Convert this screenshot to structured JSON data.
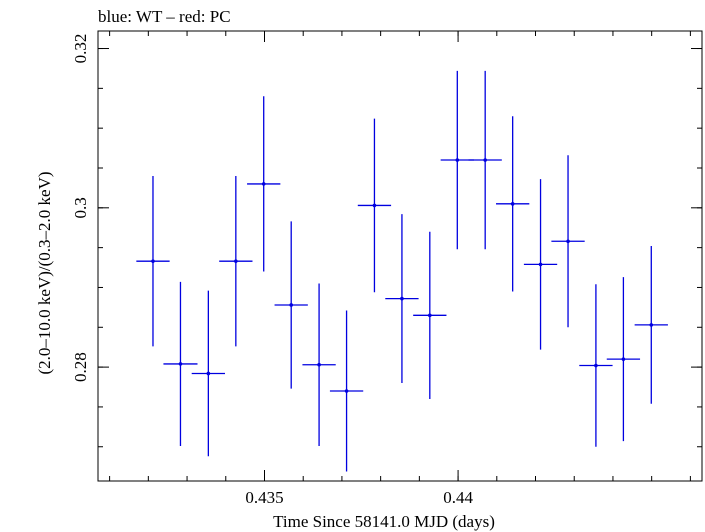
{
  "header": {
    "title": "blue: WT – red: PC"
  },
  "chart_data": {
    "type": "scatter",
    "title": "blue: WT – red: PC",
    "xlabel": "Time Since 58141.0 MJD (days)",
    "ylabel": "(2.0–10.0 keV)/(0.3–2.0 keV)",
    "xlim": [
      0.4307,
      0.4463
    ],
    "ylim": [
      0.2657,
      0.3222
    ],
    "x_ticks": [
      0.435,
      0.44
    ],
    "x_tick_labels": [
      "0.435",
      "0.44"
    ],
    "y_ticks": [
      0.28,
      0.3,
      0.32
    ],
    "y_tick_labels": [
      "0.28",
      "0.3",
      "0.32"
    ],
    "grid": false,
    "legend": "none",
    "series": [
      {
        "color": "#0000e0",
        "points": [
          {
            "x": 0.43212,
            "xerr": 0.00043,
            "y": 0.2933,
            "yerr_lo": 0.0107,
            "yerr_hi": 0.0107
          },
          {
            "x": 0.43283,
            "xerr": 0.00044,
            "y": 0.2804,
            "yerr_lo": 0.0103,
            "yerr_hi": 0.0103
          },
          {
            "x": 0.43355,
            "xerr": 0.00043,
            "y": 0.2792,
            "yerr_lo": 0.0104,
            "yerr_hi": 0.0104
          },
          {
            "x": 0.43426,
            "xerr": 0.00043,
            "y": 0.2933,
            "yerr_lo": 0.0107,
            "yerr_hi": 0.0107
          },
          {
            "x": 0.43498,
            "xerr": 0.00043,
            "y": 0.303,
            "yerr_lo": 0.011,
            "yerr_hi": 0.011
          },
          {
            "x": 0.43569,
            "xerr": 0.00043,
            "y": 0.2878,
            "yerr_lo": 0.0105,
            "yerr_hi": 0.0105
          },
          {
            "x": 0.43641,
            "xerr": 0.00043,
            "y": 0.2803,
            "yerr_lo": 0.0102,
            "yerr_hi": 0.0102
          },
          {
            "x": 0.43712,
            "xerr": 0.00043,
            "y": 0.277,
            "yerr_lo": 0.0101,
            "yerr_hi": 0.0101
          },
          {
            "x": 0.43784,
            "xerr": 0.00043,
            "y": 0.3003,
            "yerr_lo": 0.0109,
            "yerr_hi": 0.0109
          },
          {
            "x": 0.43855,
            "xerr": 0.00043,
            "y": 0.2886,
            "yerr_lo": 0.0106,
            "yerr_hi": 0.0106
          },
          {
            "x": 0.43927,
            "xerr": 0.00043,
            "y": 0.2865,
            "yerr_lo": 0.0105,
            "yerr_hi": 0.0105
          },
          {
            "x": 0.43998,
            "xerr": 0.00043,
            "y": 0.306,
            "yerr_lo": 0.0112,
            "yerr_hi": 0.0112
          },
          {
            "x": 0.4407,
            "xerr": 0.00043,
            "y": 0.306,
            "yerr_lo": 0.0112,
            "yerr_hi": 0.0112
          },
          {
            "x": 0.44141,
            "xerr": 0.00043,
            "y": 0.3005,
            "yerr_lo": 0.011,
            "yerr_hi": 0.011
          },
          {
            "x": 0.44213,
            "xerr": 0.00043,
            "y": 0.2929,
            "yerr_lo": 0.0107,
            "yerr_hi": 0.0107
          },
          {
            "x": 0.44284,
            "xerr": 0.00043,
            "y": 0.2958,
            "yerr_lo": 0.0108,
            "yerr_hi": 0.0108
          },
          {
            "x": 0.44356,
            "xerr": 0.00043,
            "y": 0.2802,
            "yerr_lo": 0.0102,
            "yerr_hi": 0.0102
          },
          {
            "x": 0.44427,
            "xerr": 0.00043,
            "y": 0.281,
            "yerr_lo": 0.0103,
            "yerr_hi": 0.0103
          },
          {
            "x": 0.44499,
            "xerr": 0.00043,
            "y": 0.2853,
            "yerr_lo": 0.0099,
            "yerr_hi": 0.0099
          }
        ]
      }
    ]
  }
}
